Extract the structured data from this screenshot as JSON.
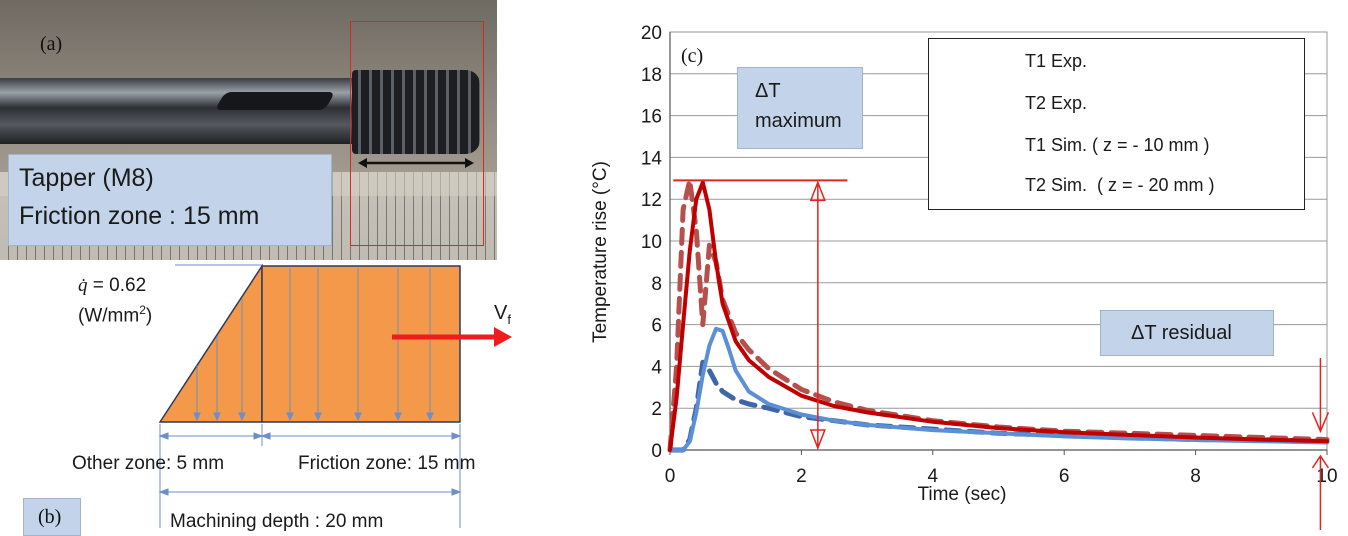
{
  "panel_a": {
    "tag": "(a)",
    "caption_line1": "Tapper (M8)",
    "caption_line2": "Friction zone : 15 mm"
  },
  "panel_b": {
    "tag": "(b)",
    "heat_flux_symbol": "q̇",
    "heat_flux_value": " = 0.62",
    "heat_flux_unit": "(W/mm",
    "heat_flux_unit_sup": "2",
    "heat_flux_unit_close": ")",
    "velocity_label": "V",
    "velocity_sub": "f",
    "other_zone_label": "Other zone: 5 mm",
    "friction_zone_label": "Friction zone: 15 mm",
    "machining_depth_label": "Machining depth : 20 mm",
    "colors": {
      "flux_fill": "#f4984a",
      "flux_arrows": "#6b8fc6",
      "velocity_arrow": "#ee1c1c"
    }
  },
  "chart_data": {
    "type": "line",
    "tag": "(c)",
    "xlabel": "Time (sec)",
    "ylabel": "Temperature rise (°C)",
    "xlim": [
      0,
      10
    ],
    "ylim": [
      0,
      20
    ],
    "xticks": [
      0,
      2,
      4,
      6,
      8,
      10
    ],
    "yticks": [
      0,
      2,
      4,
      6,
      8,
      10,
      12,
      14,
      16,
      18,
      20
    ],
    "grid": true,
    "legend_position": "top-right",
    "series": [
      {
        "name": "T1 Exp.",
        "style": "dashed",
        "color": "#b5504c",
        "x": [
          0,
          0.1,
          0.2,
          0.3,
          0.4,
          0.5,
          0.6,
          0.7,
          0.8,
          1.0,
          1.2,
          1.5,
          2.0,
          2.5,
          3.0,
          4.0,
          5.0,
          6.0,
          7.0,
          8.0,
          9.0,
          10.0
        ],
        "y": [
          0,
          4.0,
          11.5,
          12.9,
          10.5,
          6.0,
          9.8,
          9.0,
          7.2,
          5.6,
          4.8,
          3.9,
          2.9,
          2.3,
          1.9,
          1.4,
          1.1,
          0.9,
          0.8,
          0.7,
          0.6,
          0.5
        ]
      },
      {
        "name": "T2 Exp.",
        "style": "dashed",
        "color": "#3e66a8",
        "x": [
          0,
          0.2,
          0.3,
          0.4,
          0.5,
          0.6,
          0.7,
          0.8,
          0.9,
          1.0,
          1.2,
          1.5,
          2.0,
          2.5,
          3.0,
          4.0,
          5.0,
          6.0,
          7.0,
          8.0,
          9.0,
          10.0
        ],
        "y": [
          0,
          0,
          0.5,
          2.0,
          4.2,
          3.8,
          3.2,
          2.8,
          2.6,
          2.4,
          2.2,
          2.0,
          1.6,
          1.4,
          1.2,
          1.0,
          0.8,
          0.7,
          0.6,
          0.5,
          0.5,
          0.4
        ]
      },
      {
        "name": "T1 Sim. ( z = - 10 mm )",
        "style": "solid",
        "color": "#c00000",
        "x": [
          0,
          0.1,
          0.2,
          0.3,
          0.4,
          0.5,
          0.6,
          0.7,
          0.8,
          1.0,
          1.2,
          1.5,
          2.0,
          2.5,
          3.0,
          4.0,
          5.0,
          6.0,
          7.0,
          8.0,
          9.0,
          10.0
        ],
        "y": [
          0,
          2.5,
          6.0,
          9.5,
          12.0,
          12.8,
          11.5,
          9.0,
          7.0,
          5.2,
          4.3,
          3.5,
          2.6,
          2.1,
          1.8,
          1.35,
          1.05,
          0.85,
          0.72,
          0.6,
          0.5,
          0.42
        ]
      },
      {
        "name": "T2 Sim.  ( z = - 20 mm )",
        "style": "solid",
        "color": "#5b8fd6",
        "x": [
          0,
          0.2,
          0.3,
          0.4,
          0.5,
          0.6,
          0.7,
          0.8,
          0.9,
          1.0,
          1.2,
          1.5,
          2.0,
          2.5,
          3.0,
          4.0,
          5.0,
          6.0,
          7.0,
          8.0,
          9.0,
          10.0
        ],
        "y": [
          0,
          0,
          0.4,
          1.8,
          3.6,
          5.0,
          5.8,
          5.7,
          4.8,
          3.8,
          2.8,
          2.2,
          1.7,
          1.4,
          1.2,
          0.95,
          0.8,
          0.65,
          0.55,
          0.48,
          0.42,
          0.36
        ]
      }
    ],
    "annotations": {
      "dt_maximum_line1": "ΔT",
      "dt_maximum_line2": "maximum",
      "dt_residual": "ΔT residual",
      "dt_max_level": 12.9,
      "dt_max_at_time": 2.25,
      "dt_residual_at_time": 9.9
    }
  }
}
